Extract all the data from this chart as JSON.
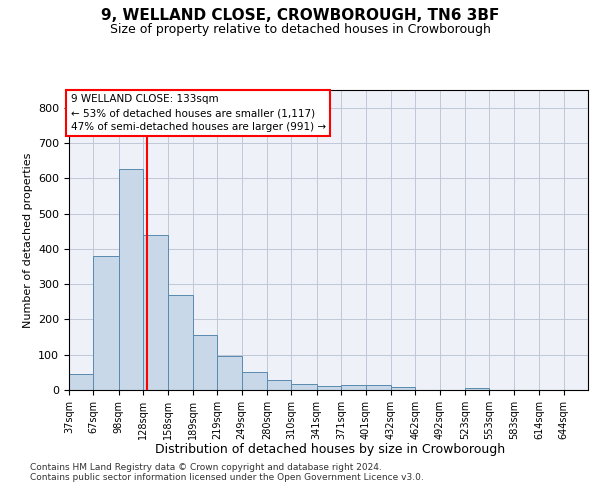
{
  "title": "9, WELLAND CLOSE, CROWBOROUGH, TN6 3BF",
  "subtitle": "Size of property relative to detached houses in Crowborough",
  "xlabel": "Distribution of detached houses by size in Crowborough",
  "ylabel": "Number of detached properties",
  "footnote1": "Contains HM Land Registry data © Crown copyright and database right 2024.",
  "footnote2": "Contains public sector information licensed under the Open Government Licence v3.0.",
  "annotation_line1": "9 WELLAND CLOSE: 133sqm",
  "annotation_line2": "← 53% of detached houses are smaller (1,117)",
  "annotation_line3": "47% of semi-detached houses are larger (991) →",
  "bar_color": "#c8d8e8",
  "bar_edge_color": "#5a8ab0",
  "grid_color": "#c0c8d8",
  "bg_color": "#eef2f8",
  "red_line_x": 133,
  "categories": [
    "37sqm",
    "67sqm",
    "98sqm",
    "128sqm",
    "158sqm",
    "189sqm",
    "219sqm",
    "249sqm",
    "280sqm",
    "310sqm",
    "341sqm",
    "371sqm",
    "401sqm",
    "432sqm",
    "462sqm",
    "492sqm",
    "523sqm",
    "553sqm",
    "583sqm",
    "614sqm",
    "644sqm"
  ],
  "bin_edges": [
    37,
    67,
    98,
    128,
    158,
    189,
    219,
    249,
    280,
    310,
    341,
    371,
    401,
    432,
    462,
    492,
    523,
    553,
    583,
    614,
    644,
    674
  ],
  "values": [
    45,
    380,
    625,
    440,
    268,
    155,
    97,
    52,
    28,
    17,
    12,
    13,
    14,
    8,
    0,
    0,
    7,
    0,
    0,
    0,
    0
  ],
  "ylim": [
    0,
    850
  ],
  "yticks": [
    0,
    100,
    200,
    300,
    400,
    500,
    600,
    700,
    800
  ]
}
